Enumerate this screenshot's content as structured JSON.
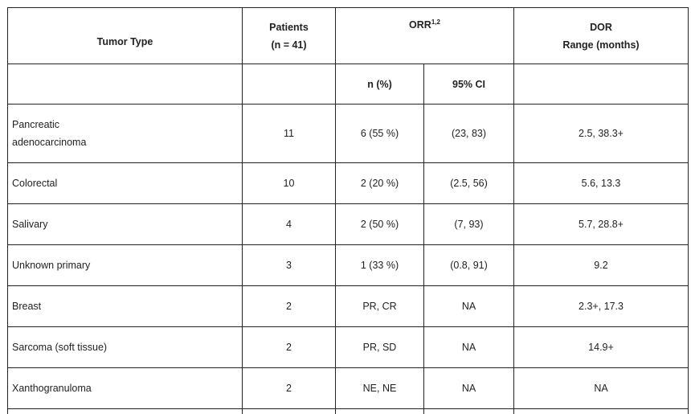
{
  "headers": {
    "tumor_type": "Tumor Type",
    "patients_line1": "Patients",
    "patients_line2": "(n = 41)",
    "orr": "ORR",
    "orr_sup": "1,2",
    "dor_line1": "DOR",
    "dor_line2": "Range (months)",
    "n_pct": "n (%)",
    "ci": "95% CI"
  },
  "rows": [
    {
      "type_line1": "Pancreatic",
      "type_line2": "adenocarcinoma",
      "patients": "11",
      "n_pct": "6 (55 %)",
      "ci": "(23, 83)",
      "dor": "2.5, 38.3+"
    },
    {
      "type_line1": "Colorectal",
      "type_line2": "",
      "patients": "10",
      "n_pct": "2 (20 %)",
      "ci": "(2.5, 56)",
      "dor": "5.6, 13.3"
    },
    {
      "type_line1": "Salivary",
      "type_line2": "",
      "patients": "4",
      "n_pct": "2 (50 %)",
      "ci": "(7, 93)",
      "dor": "5.7, 28.8+"
    },
    {
      "type_line1": "Unknown primary",
      "type_line2": "",
      "patients": "3",
      "n_pct": "1 (33 %)",
      "ci": "(0.8, 91)",
      "dor": "9.2"
    },
    {
      "type_line1": "Breast",
      "type_line2": "",
      "patients": "2",
      "n_pct": "PR, CR",
      "ci": "NA",
      "dor": "2.3+, 17.3"
    },
    {
      "type_line1": "Sarcoma (soft tissue)",
      "type_line2": "",
      "patients": "2",
      "n_pct": "PR, SD",
      "ci": "NA",
      "dor": "14.9+"
    },
    {
      "type_line1": "Xanthogranuloma",
      "type_line2": "",
      "patients": "2",
      "n_pct": "NE, NE",
      "ci": "NA",
      "dor": "NA"
    }
  ]
}
